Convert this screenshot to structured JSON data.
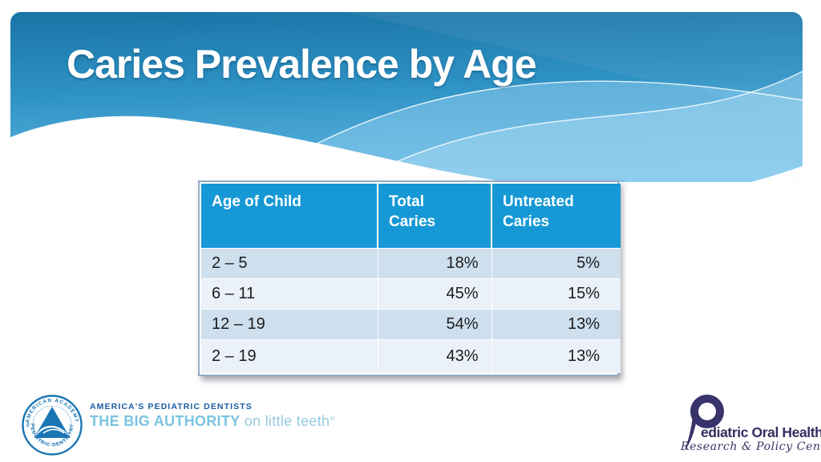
{
  "slide": {
    "title": "Caries Prevalence by Age"
  },
  "table": {
    "columns": [
      "Age of Child",
      "Total\nCaries",
      "Untreated\nCaries"
    ],
    "rows": [
      {
        "age": "2 – 5",
        "total": "18%",
        "untreated": "5%"
      },
      {
        "age": "6 – 11",
        "total": "45%",
        "untreated": "15%"
      },
      {
        "age": "12 – 19",
        "total": "54%",
        "untreated": "13%"
      },
      {
        "age": "2 – 19",
        "total": "43%",
        "untreated": "13%"
      }
    ]
  },
  "footer_left": {
    "seal_text_top": "AMERICAN ACADEMY",
    "seal_text_of": "OF",
    "seal_text_bottom": "PEDIATRIC DENTISTRY",
    "line1": "AMERICA'S PEDIATRIC DENTISTS",
    "line2_bold": "THE BIG AUTHORITY",
    "line2_light": " on little teeth",
    "reg_mark": "®"
  },
  "footer_right": {
    "name_after_p": "ediatric Oral Health",
    "subtitle": "Research & Policy Center"
  },
  "colors": {
    "table_header_blue": "#1598D5",
    "row_odd": "#CEDFEE",
    "row_even": "#EAF1F8",
    "band_gradient_top": "#1A74A6",
    "band_gradient_bottom": "#5FB5DF",
    "aapd_blue": "#1B76B4",
    "poh_navy": "#38336A"
  }
}
